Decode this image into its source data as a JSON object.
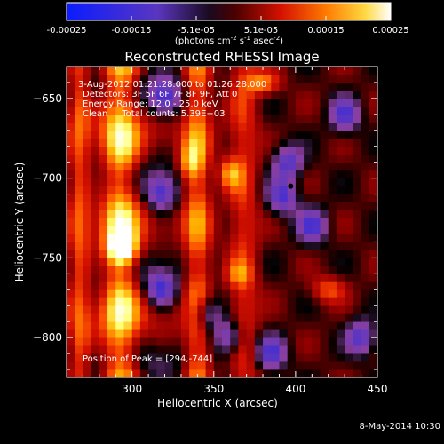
{
  "chart_data": {
    "type": "heatmap",
    "title": "Reconstructed RHESSI Image",
    "xlabel": "Heliocentric X (arcsec)",
    "ylabel": "Heliocentric Y (arcsec)",
    "xlim": [
      260,
      450
    ],
    "ylim": [
      -825,
      -630
    ],
    "x_ticks": [
      300,
      350,
      400,
      450
    ],
    "y_ticks": [
      -650,
      -700,
      -750,
      -800
    ],
    "colorbar": {
      "range": [
        -0.00025,
        0.00025
      ],
      "ticks": [
        "-0.00025",
        "-0.00015",
        "-5.1e-05",
        "5.1e-05",
        "0.00015",
        "0.00025"
      ],
      "units_parts": [
        "(photons cm",
        "-2",
        " s",
        "-1",
        " asec",
        "-2",
        ")"
      ]
    },
    "annotations": {
      "time_range": "3-Aug-2012 01:21:28.000 to 01:26:28.000",
      "detectors": "Detectors: 3F 5F 6F 7F 8F 9F, Att 0",
      "energy": "Energy Range: 12.0 - 25.0 keV",
      "method_counts": "Clean     Total counts: 5.39E+03",
      "peak": "Position of Peak = [294,-744]"
    },
    "peak": {
      "x": 294,
      "y": -744
    },
    "timestamp": "8-May-2014 10:30",
    "colors": {
      "background": "#000000",
      "axis": "#ffffff",
      "text": "#ffffff",
      "colormap": [
        "#0a1cff",
        "#3b2bd8",
        "#6a3ab8",
        "#8a3fa0",
        "#000000",
        "#8c0000",
        "#d41000",
        "#ff5a00",
        "#ffb000",
        "#ffff70",
        "#ffffff"
      ]
    }
  }
}
